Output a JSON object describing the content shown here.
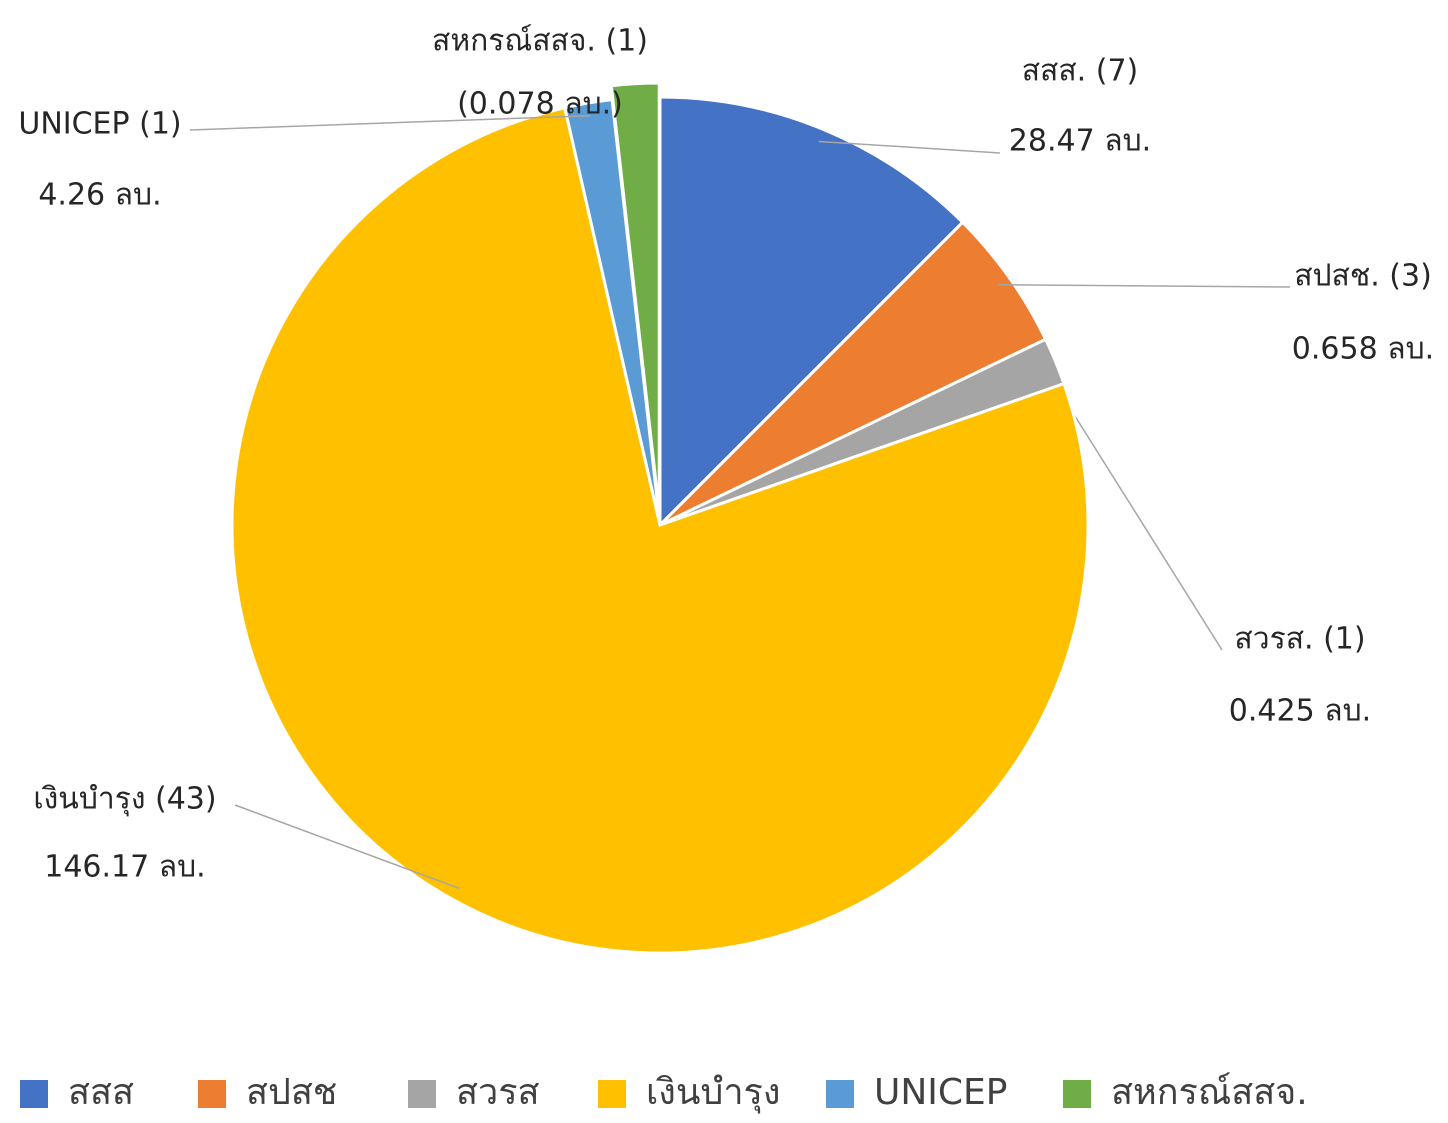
{
  "chart_data": {
    "type": "pie",
    "categories": [
      "สสส",
      "สปสช",
      "สวรส",
      "เงินบำรุง",
      "UNICEP",
      "สหกรณ์สสจ."
    ],
    "values": [
      7,
      3,
      1,
      43,
      1,
      1
    ],
    "value_labels": [
      "สสส. (7)",
      "สปสช. (3)",
      "สวรส. (1)",
      "เงินบำรุง (43)",
      "UNICEP (1)",
      "สหกรณ์สสจ. (1)"
    ],
    "amount_labels": [
      "28.47 ลบ.",
      "0.658 ลบ.",
      "0.425 ลบ.",
      "146.17 ลบ.",
      "4.26 ลบ.",
      "(0.078 ลบ.)"
    ],
    "colors": [
      "#4472c4",
      "#ed7d31",
      "#a5a5a5",
      "#ffc000",
      "#5b9bd5",
      "#70ad47"
    ],
    "exploded": [
      false,
      false,
      false,
      false,
      false,
      true
    ],
    "legend": "bottom"
  }
}
